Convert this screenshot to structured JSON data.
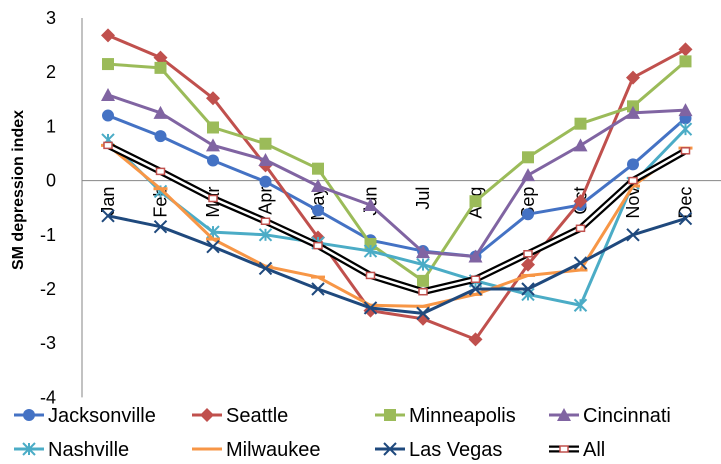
{
  "chart_data": {
    "type": "line",
    "title": "",
    "xlabel": "",
    "ylabel": "SM depression index",
    "ylim": [
      -4,
      3
    ],
    "yticks": [
      3,
      2,
      1,
      0,
      -1,
      -2,
      -3,
      -4
    ],
    "grid": false,
    "legend_position": "bottom",
    "categories": [
      "Jan",
      "Feb",
      "Mar",
      "Apr",
      "May",
      "Jun",
      "Jul",
      "Aug",
      "Sep",
      "Oct",
      "Nov",
      "Dec"
    ],
    "series": [
      {
        "name": "Jacksonville",
        "color": "#4472C4",
        "marker": "circle",
        "values": [
          1.2,
          0.82,
          0.37,
          -0.02,
          -0.55,
          -1.1,
          -1.3,
          -1.4,
          -0.62,
          -0.45,
          0.3,
          1.15
        ]
      },
      {
        "name": "Seattle",
        "color": "#C0504D",
        "marker": "diamond",
        "values": [
          2.68,
          2.27,
          1.52,
          0.28,
          -1.05,
          -2.4,
          -2.55,
          -2.93,
          -1.55,
          -0.38,
          1.9,
          2.42
        ]
      },
      {
        "name": "Minneapolis",
        "color": "#9BBB59",
        "marker": "square",
        "values": [
          2.15,
          2.08,
          0.98,
          0.68,
          0.22,
          -1.17,
          -1.85,
          -0.38,
          0.43,
          1.05,
          1.37,
          2.2
        ]
      },
      {
        "name": "Cincinnati",
        "color": "#8064A2",
        "marker": "triangle",
        "values": [
          1.58,
          1.25,
          0.65,
          0.38,
          -0.1,
          -0.45,
          -1.32,
          -1.4,
          0.1,
          0.65,
          1.25,
          1.3
        ]
      },
      {
        "name": "Nashville",
        "color": "#4BACC6",
        "marker": "cross",
        "values": [
          0.75,
          -0.2,
          -0.95,
          -1.0,
          -1.15,
          -1.3,
          -1.55,
          -1.85,
          -2.1,
          -2.3,
          -0.05,
          0.95
        ]
      },
      {
        "name": "Milwaukee",
        "color": "#F79646",
        "marker": "dash",
        "values": [
          0.65,
          -0.15,
          -1.08,
          -1.58,
          -1.78,
          -2.3,
          -2.32,
          -2.1,
          -1.75,
          -1.65,
          -0.1,
          0.6
        ]
      },
      {
        "name": "Las Vegas",
        "color": "#1F497D",
        "marker": "x",
        "values": [
          -0.65,
          -0.85,
          -1.22,
          -1.62,
          -2.0,
          -2.35,
          -2.45,
          -2.0,
          -2.0,
          -1.52,
          -1.0,
          -0.7
        ]
      },
      {
        "name": "All",
        "color": "#000000",
        "marker": "box",
        "values": [
          0.65,
          0.17,
          -0.33,
          -0.75,
          -1.2,
          -1.75,
          -2.05,
          -1.82,
          -1.35,
          -0.88,
          0.0,
          0.55
        ]
      }
    ]
  }
}
